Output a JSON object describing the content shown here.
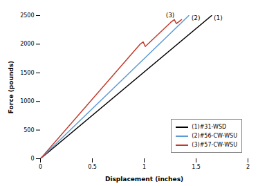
{
  "chart_data": {
    "type": "line",
    "xlabel": "Displacement (inches)",
    "ylabel": "Force (pounds)",
    "xlim": [
      0,
      2
    ],
    "ylim": [
      0,
      2500
    ],
    "xticks": [
      0,
      0.5,
      1,
      1.5,
      2
    ],
    "yticks": [
      0,
      500,
      1000,
      1500,
      2000,
      2500
    ],
    "legend": "lower right",
    "series": [
      {
        "name": "(1)#31-WSD",
        "color": "#000000",
        "x": [
          0,
          1.65
        ],
        "values": [
          0,
          2500
        ]
      },
      {
        "name": "(2)#56-CW-WSU",
        "color": "#5b9bd5",
        "x": [
          0,
          1.43
        ],
        "values": [
          0,
          2500
        ]
      },
      {
        "name": "(3)#57-CW-WSU",
        "color": "#c0392b",
        "x": [
          0,
          0.96,
          0.99,
          1.01,
          1.255,
          1.29,
          1.31,
          1.36
        ],
        "values": [
          0,
          2000,
          2040,
          1960,
          2380,
          2430,
          2360,
          2430
        ]
      }
    ],
    "annotations": [
      {
        "text": "(1)",
        "x": 1.67,
        "y": 2460
      },
      {
        "text": "(2)",
        "x": 1.455,
        "y": 2460
      },
      {
        "text": "(3)",
        "x": 1.25,
        "y": 2470
      }
    ]
  }
}
